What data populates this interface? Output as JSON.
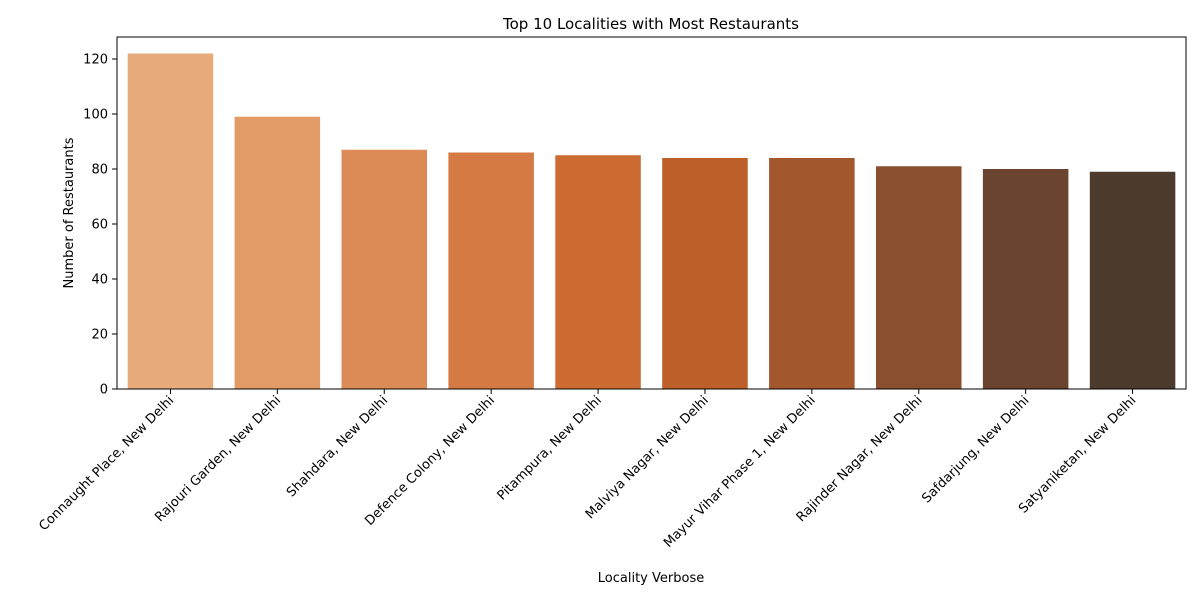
{
  "chart_data": {
    "type": "bar",
    "title": "Top 10 Localities with Most Restaurants",
    "xlabel": "Locality Verbose",
    "ylabel": "Number of Restaurants",
    "categories": [
      "Connaught Place, New Delhi",
      "Rajouri Garden, New Delhi",
      "Shahdara, New Delhi",
      "Defence Colony, New Delhi",
      "Pitampura, New Delhi",
      "Malviya Nagar, New Delhi",
      "Mayur Vihar Phase 1, New Delhi",
      "Rajinder Nagar, New Delhi",
      "Safdarjung, New Delhi",
      "Satyaniketan, New Delhi"
    ],
    "values": [
      122,
      99,
      87,
      86,
      85,
      84,
      84,
      81,
      80,
      79
    ],
    "colors": [
      "#e7aa7a",
      "#e39b66",
      "#dc8b57",
      "#d67a43",
      "#cd6c32",
      "#bc5f28",
      "#a3572c",
      "#894f2f",
      "#6b4430",
      "#4c3a2d"
    ],
    "ylim": [
      0,
      128
    ],
    "yticks": [
      0,
      20,
      40,
      60,
      80,
      100,
      120
    ],
    "grid": false,
    "legend": "none"
  }
}
